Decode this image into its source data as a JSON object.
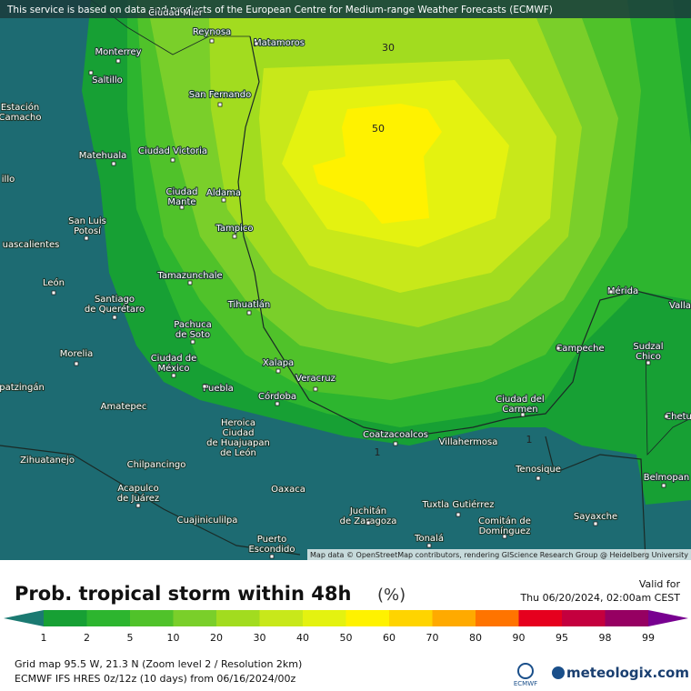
{
  "header": {
    "notice": "This service is based on data and products of the European Centre for Medium-range Weather Forecasts (ECMWF)"
  },
  "map": {
    "contour_labels": [
      30,
      50,
      1,
      1
    ],
    "cities": [
      {
        "lines": [
          "Ciudad Mier"
        ]
      },
      {
        "lines": [
          "Reynosa"
        ]
      },
      {
        "lines": [
          "Matamoros"
        ]
      },
      {
        "lines": [
          "Monterrey"
        ]
      },
      {
        "lines": [
          "Saltillo"
        ]
      },
      {
        "lines": [
          "San Fernando"
        ]
      },
      {
        "lines": [
          "Estación",
          "Camacho"
        ]
      },
      {
        "lines": [
          "Matehuala"
        ]
      },
      {
        "lines": [
          "Ciudad Victoria"
        ]
      },
      {
        "lines": [
          "illo"
        ]
      },
      {
        "lines": [
          "Ciudad",
          "Mante"
        ]
      },
      {
        "lines": [
          "Aldama"
        ]
      },
      {
        "lines": [
          "San Luis",
          "Potosí"
        ]
      },
      {
        "lines": [
          "Tampico"
        ]
      },
      {
        "lines": [
          "uascalientes"
        ]
      },
      {
        "lines": [
          "Tamazunchale"
        ]
      },
      {
        "lines": [
          "León"
        ]
      },
      {
        "lines": [
          "Santiago",
          "de Querétaro"
        ]
      },
      {
        "lines": [
          "Tihuatlán"
        ]
      },
      {
        "lines": [
          "Mérida"
        ]
      },
      {
        "lines": [
          "Valla"
        ]
      },
      {
        "lines": [
          "Pachuca",
          "de Soto"
        ]
      },
      {
        "lines": [
          "Campeche"
        ]
      },
      {
        "lines": [
          "Sudzal",
          "Chico"
        ]
      },
      {
        "lines": [
          "Morelia"
        ]
      },
      {
        "lines": [
          "Ciudad de",
          "México"
        ]
      },
      {
        "lines": [
          "Xalapa"
        ]
      },
      {
        "lines": [
          "patzingán"
        ]
      },
      {
        "lines": [
          "Puebla"
        ]
      },
      {
        "lines": [
          "Veracruz"
        ]
      },
      {
        "lines": [
          "Córdoba"
        ]
      },
      {
        "lines": [
          "Amatepec"
        ]
      },
      {
        "lines": [
          "Ciudad del",
          "Carmen"
        ]
      },
      {
        "lines": [
          "Chetu"
        ]
      },
      {
        "lines": [
          "Heroica",
          "Ciudad",
          "de Huajuapan",
          "de León"
        ]
      },
      {
        "lines": [
          "Coatzacoalcos"
        ]
      },
      {
        "lines": [
          "Villahermosa"
        ]
      },
      {
        "lines": [
          "Zihuatanejo"
        ]
      },
      {
        "lines": [
          "Chilpancingo"
        ]
      },
      {
        "lines": [
          "Tenosique"
        ]
      },
      {
        "lines": [
          "Acapulco",
          "de Juárez"
        ]
      },
      {
        "lines": [
          "Oaxaca"
        ]
      },
      {
        "lines": [
          "Belmopan"
        ]
      },
      {
        "lines": [
          "Juchitán",
          "de Zaragoza"
        ]
      },
      {
        "lines": [
          "Tuxtla Gutiérrez"
        ]
      },
      {
        "lines": [
          "Sayaxche"
        ]
      },
      {
        "lines": [
          "Comitán de",
          "Domínguez"
        ]
      },
      {
        "lines": [
          "Cuajiniculilpa"
        ]
      },
      {
        "lines": [
          "Puerto",
          "Escondido"
        ]
      },
      {
        "lines": [
          "Tonalá"
        ]
      }
    ],
    "attribution": "Map data © OpenStreetMap contributors, rendering GIScience Research Group @ Heidelberg University"
  },
  "legend": {
    "title": "Prob. tropical storm within 48h",
    "unit": "(%)",
    "valid_label": "Valid for",
    "valid_time": "Thu 06/20/2024, 02:00am CEST",
    "ticks": [
      1,
      2,
      5,
      10,
      20,
      30,
      40,
      50,
      60,
      70,
      80,
      90,
      95,
      98,
      99
    ],
    "colors": [
      "#1b7a72",
      "#17a034",
      "#2db52f",
      "#50c22a",
      "#7acf2a",
      "#a2dc1f",
      "#c8e81a",
      "#e4f210",
      "#fff200",
      "#ffd400",
      "#ffaa00",
      "#ff7400",
      "#e6001e",
      "#c4003e",
      "#960062",
      "#780090"
    ]
  },
  "footer": {
    "grid": "Grid map 95.5 W, 21.3 N (Zoom level 2 / Resolution 2km)",
    "model": "ECMWF IFS HRES 0z/12z (10 days) from  06/16/2024/00z",
    "logo": "ECMWF",
    "brand": "meteologix.com"
  }
}
